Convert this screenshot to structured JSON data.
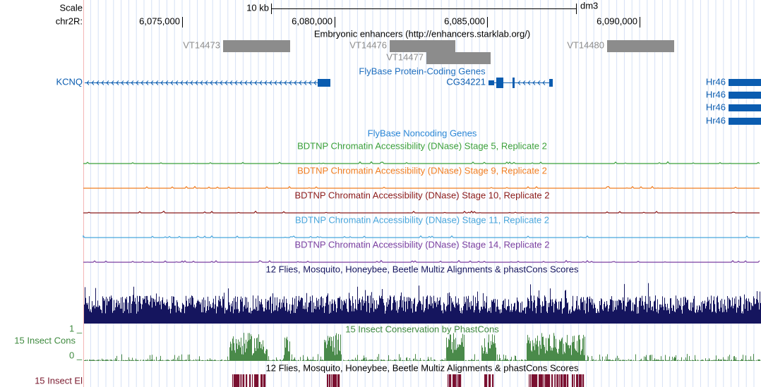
{
  "header": {
    "scale_label": "Scale",
    "scale_bar": "10 kb",
    "assembly": "dm3",
    "chrom": "chr2R:"
  },
  "ruler": {
    "ticks": [
      "6,075,000",
      "6,080,000",
      "6,085,000",
      "6,090,000"
    ]
  },
  "enhancers": {
    "title": "Embryonic enhancers (http://enhancers.starklab.org/)",
    "items": [
      "VT14473",
      "VT14476",
      "VT14477",
      "VT14480"
    ]
  },
  "protein_genes": {
    "title": "FlyBase Protein-Coding Genes",
    "genes": [
      "KCNQ",
      "CG34221",
      "Hr46",
      "Hr46",
      "Hr46",
      "Hr46"
    ]
  },
  "noncoding_genes": {
    "title": "FlyBase Noncoding Genes"
  },
  "dnase": [
    "BDTNP Chromatin Accessibility (DNase) Stage 5, Replicate 2",
    "BDTNP Chromatin Accessibility (DNase) Stage 9, Replicate 2",
    "BDTNP Chromatin Accessibility (DNase) Stage 10, Replicate 2",
    "BDTNP Chromatin Accessibility (DNase) Stage 11, Replicate 2",
    "BDTNP Chromatin Accessibility (DNase) Stage 14, Replicate 2"
  ],
  "multiz": {
    "title": "12 Flies, Mosquito, Honeybee, Beetle Multiz Alignments & phastCons Scores"
  },
  "phastcons": {
    "title": "15 Insect Conservation by PhastCons",
    "label": "15 Insect Cons",
    "max": "1 _",
    "min": "0 _"
  },
  "elements": {
    "title": "12 Flies, Mosquito, Honeybee, Beetle Multiz Alignments & phastCons Scores",
    "label": "15 Insect El"
  }
}
